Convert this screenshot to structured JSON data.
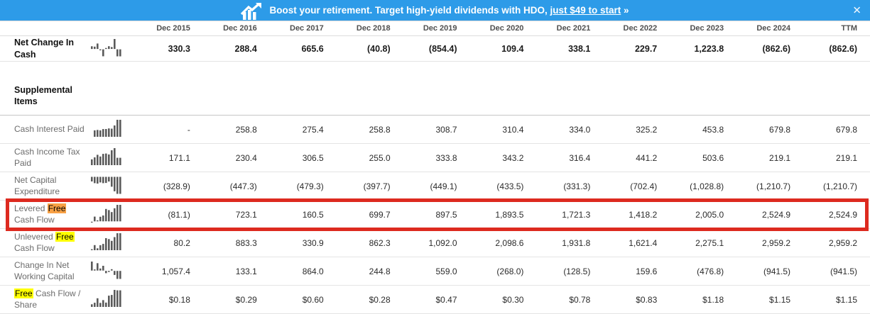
{
  "banner": {
    "message_prefix": "Boost your retirement. Target high-yield dividends with HDO, ",
    "link_text": "just $49 to start",
    "message_suffix": " »",
    "close_label": "✕",
    "icon": "growth-chart-icon"
  },
  "colors": {
    "banner_blue": "#2D9BE8",
    "highlight_orange": "#F8A145",
    "highlight_yellow": "#FFFF00",
    "annotation_red": "#DD2A1F"
  },
  "table": {
    "columns": [
      "Dec 2015",
      "Dec 2016",
      "Dec 2017",
      "Dec 2018",
      "Dec 2019",
      "Dec 2020",
      "Dec 2021",
      "Dec 2022",
      "Dec 2023",
      "Dec 2024",
      "TTM"
    ],
    "rows": [
      {
        "type": "data",
        "bold": true,
        "label_parts": [
          {
            "text": "Net Change In Cash"
          }
        ],
        "values": [
          "330.3",
          "288.4",
          "665.6",
          "(40.8)",
          "(854.4)",
          "109.4",
          "338.1",
          "229.7",
          "1,223.8",
          "(862.6)",
          "(862.6)"
        ]
      },
      {
        "type": "spacer"
      },
      {
        "type": "section",
        "label": "Supplemental Items"
      },
      {
        "type": "data",
        "label_parts": [
          {
            "text": "Cash Interest Paid"
          }
        ],
        "values": [
          "-",
          "258.8",
          "275.4",
          "258.8",
          "308.7",
          "310.4",
          "334.0",
          "325.2",
          "453.8",
          "679.8",
          "679.8"
        ]
      },
      {
        "type": "data",
        "label_parts": [
          {
            "text": "Cash Income Tax Paid"
          }
        ],
        "values": [
          "171.1",
          "230.4",
          "306.5",
          "255.0",
          "333.8",
          "343.2",
          "316.4",
          "441.2",
          "503.6",
          "219.1",
          "219.1"
        ]
      },
      {
        "type": "data",
        "label_parts": [
          {
            "text": "Net Capital Expenditure"
          }
        ],
        "values": [
          "(328.9)",
          "(447.3)",
          "(479.3)",
          "(397.7)",
          "(449.1)",
          "(433.5)",
          "(331.3)",
          "(702.4)",
          "(1,028.8)",
          "(1,210.7)",
          "(1,210.7)"
        ]
      },
      {
        "type": "data",
        "annotated": true,
        "label_parts": [
          {
            "text": "Levered "
          },
          {
            "text": "Free",
            "hl": "orange"
          },
          {
            "text": " Cash Flow"
          }
        ],
        "values": [
          "(81.1)",
          "723.1",
          "160.5",
          "699.7",
          "897.5",
          "1,893.5",
          "1,721.3",
          "1,418.2",
          "2,005.0",
          "2,524.9",
          "2,524.9"
        ]
      },
      {
        "type": "data",
        "label_parts": [
          {
            "text": "Unlevered "
          },
          {
            "text": "Free",
            "hl": "yellow"
          },
          {
            "text": " Cash Flow"
          }
        ],
        "values": [
          "80.2",
          "883.3",
          "330.9",
          "862.3",
          "1,092.0",
          "2,098.6",
          "1,931.8",
          "1,621.4",
          "2,275.1",
          "2,959.2",
          "2,959.2"
        ]
      },
      {
        "type": "data",
        "label_parts": [
          {
            "text": "Change In Net Working Capital"
          }
        ],
        "values": [
          "1,057.4",
          "133.1",
          "864.0",
          "244.8",
          "559.0",
          "(268.0)",
          "(128.5)",
          "159.6",
          "(476.8)",
          "(941.5)",
          "(941.5)"
        ]
      },
      {
        "type": "data",
        "label_parts": [
          {
            "text": "Free",
            "hl": "yellow"
          },
          {
            "text": " Cash Flow / Share"
          }
        ],
        "values": [
          "$0.18",
          "$0.29",
          "$0.60",
          "$0.28",
          "$0.47",
          "$0.30",
          "$0.78",
          "$0.83",
          "$1.18",
          "$1.15",
          "$1.15"
        ]
      }
    ]
  }
}
